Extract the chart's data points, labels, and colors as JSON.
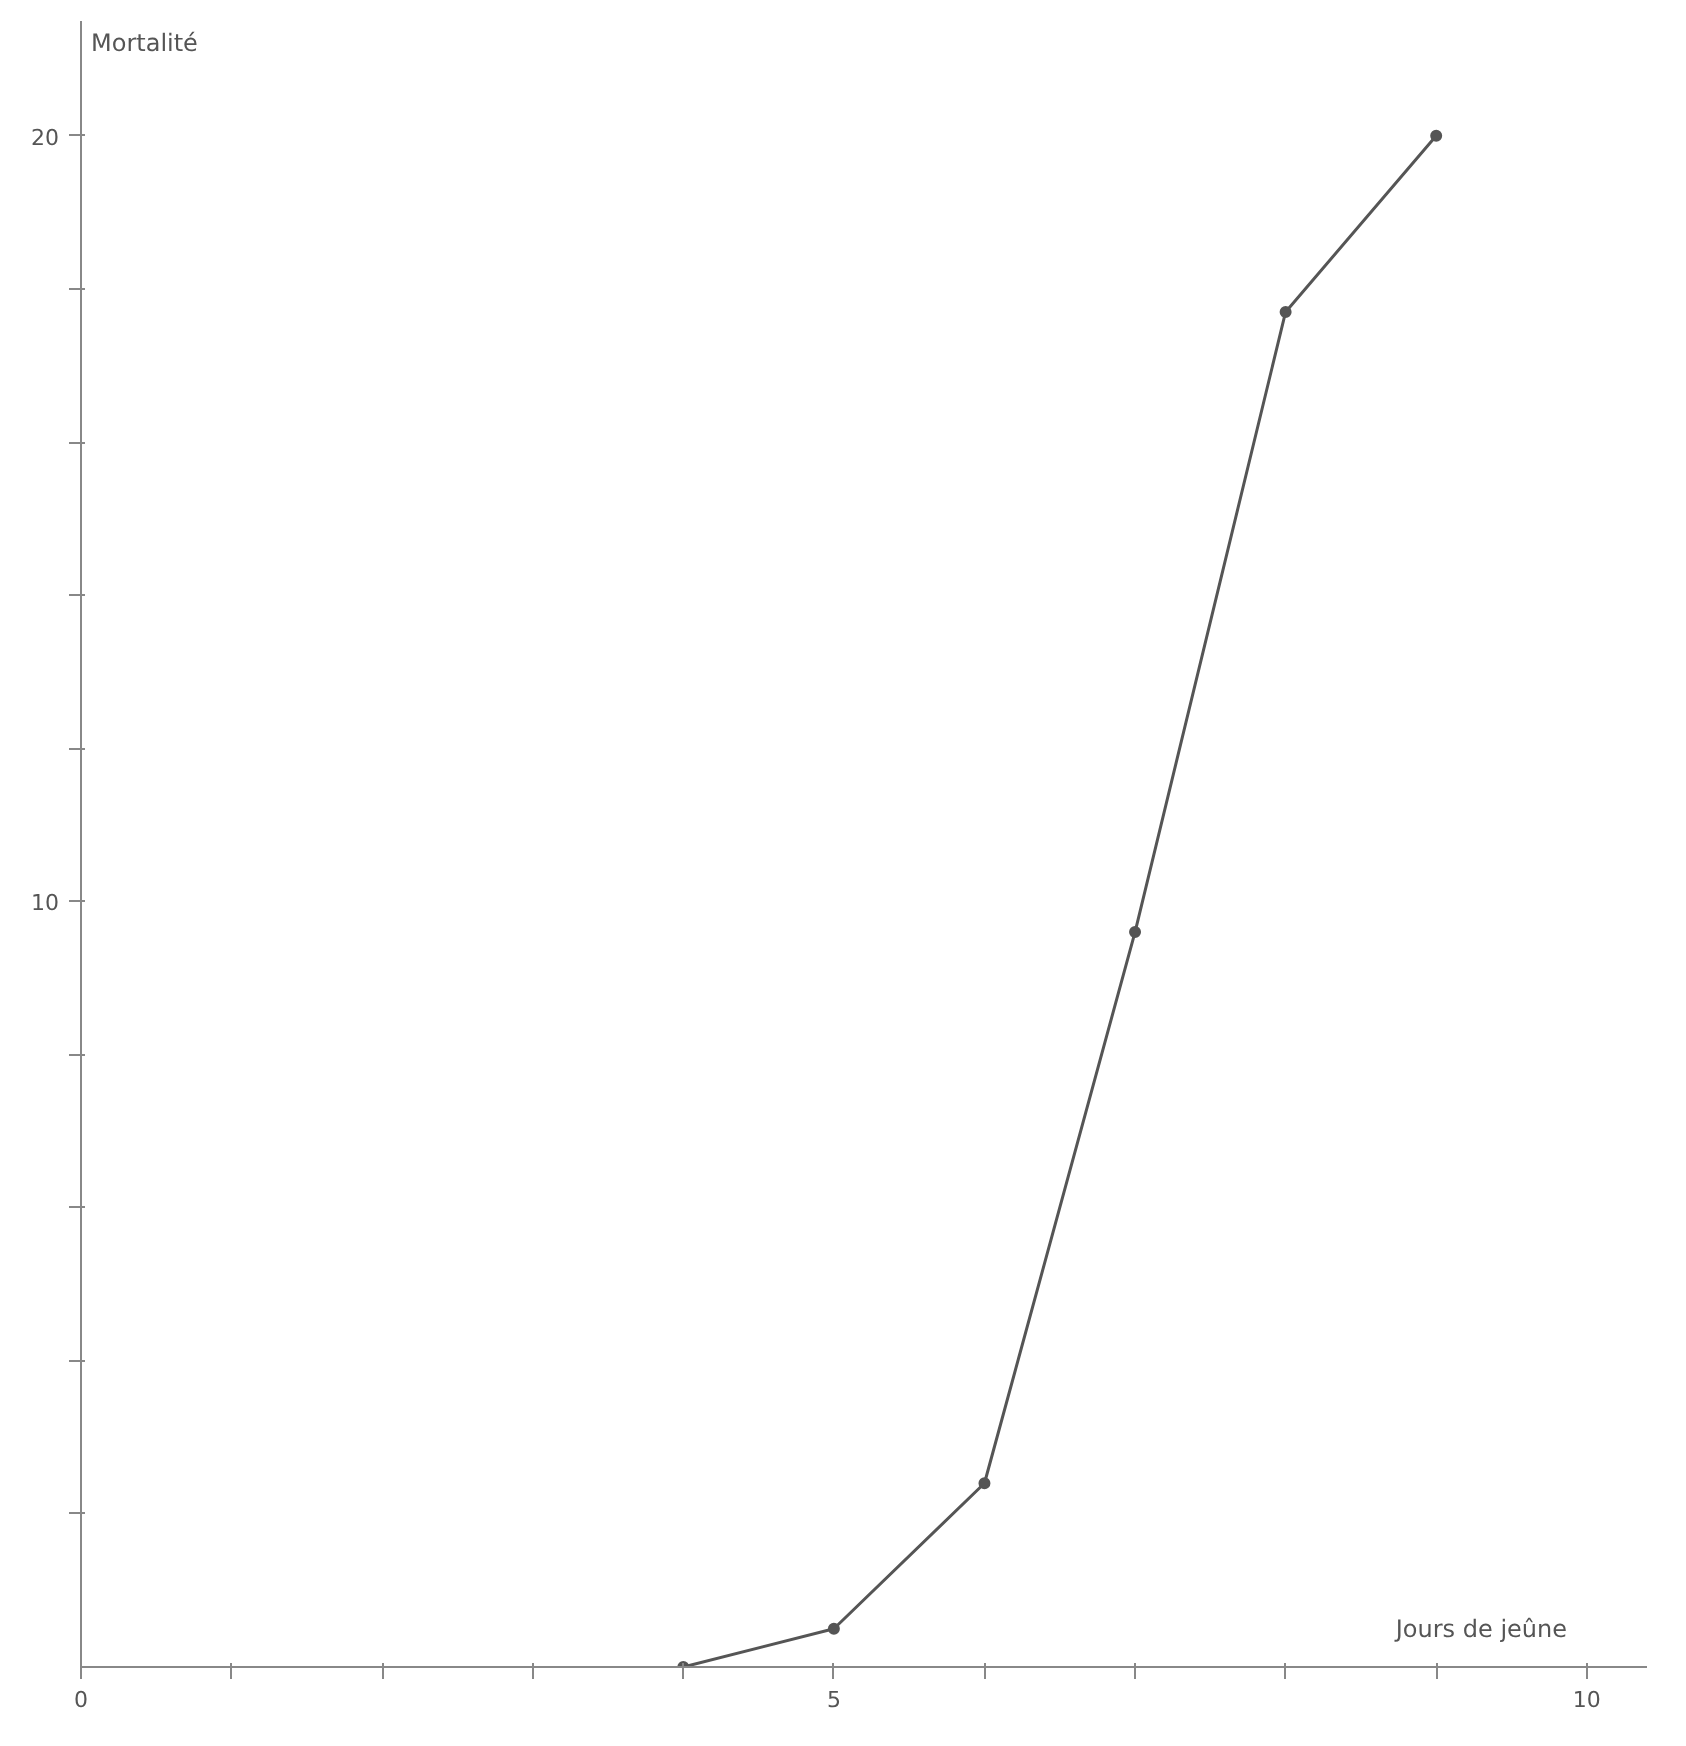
{
  "chart_data": {
    "type": "line",
    "xlabel": "Jours de jeûne",
    "ylabel": "Mortalité",
    "x": [
      4,
      5,
      6,
      7,
      8,
      9
    ],
    "series": [
      {
        "color": "#555555",
        "values": [
          0,
          0.5,
          2.4,
          9.6,
          17.7,
          20
        ]
      }
    ],
    "xlim": [
      0,
      10.4
    ],
    "ylim": [
      0,
      21.5
    ],
    "xticks": [
      0,
      {
        "value": 1,
        "label": null
      },
      {
        "value": 2,
        "label": null
      },
      {
        "value": 3,
        "label": null
      },
      {
        "value": 4,
        "label": null
      },
      5,
      {
        "value": 6,
        "label": null
      },
      {
        "value": 7,
        "label": null
      },
      {
        "value": 8,
        "label": null
      },
      {
        "value": 9,
        "label": null
      },
      10
    ],
    "yticks": [
      {
        "value": 2,
        "label": null
      },
      {
        "value": 4,
        "label": null
      },
      {
        "value": 6,
        "label": null
      },
      {
        "value": 8,
        "label": null
      },
      10,
      {
        "value": 12,
        "label": null
      },
      {
        "value": 14,
        "label": null
      },
      {
        "value": 16,
        "label": null
      },
      {
        "value": 18,
        "label": null
      },
      20
    ],
    "marker": "circle",
    "line_style": "solid"
  }
}
